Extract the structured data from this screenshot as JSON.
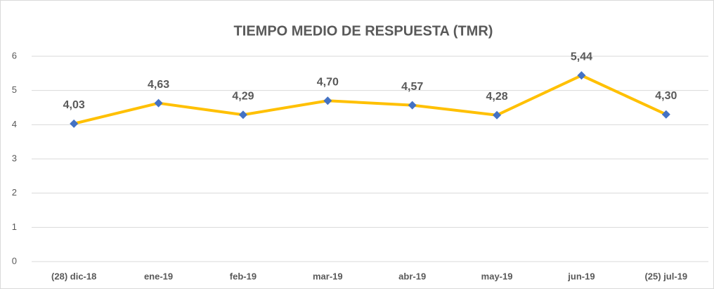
{
  "chart_data": {
    "type": "line",
    "title": "TIEMPO MEDIO DE RESPUESTA (TMR)",
    "categories": [
      "(28) dic-18",
      "ene-19",
      "feb-19",
      "mar-19",
      "abr-19",
      "may-19",
      "jun-19",
      "(25) jul-19"
    ],
    "series": [
      {
        "name": "TMR",
        "color": "#ffc000",
        "marker_color": "#4472c4",
        "values": [
          4.03,
          4.63,
          4.29,
          4.7,
          4.57,
          4.28,
          5.44,
          4.3
        ],
        "value_labels": [
          "4,03",
          "4,63",
          "4,29",
          "4,70",
          "4,57",
          "4,28",
          "5,44",
          "4,30"
        ]
      }
    ],
    "ylim": [
      0,
      6
    ],
    "yticks": [
      0,
      1,
      2,
      3,
      4,
      5,
      6
    ],
    "grid": true
  }
}
